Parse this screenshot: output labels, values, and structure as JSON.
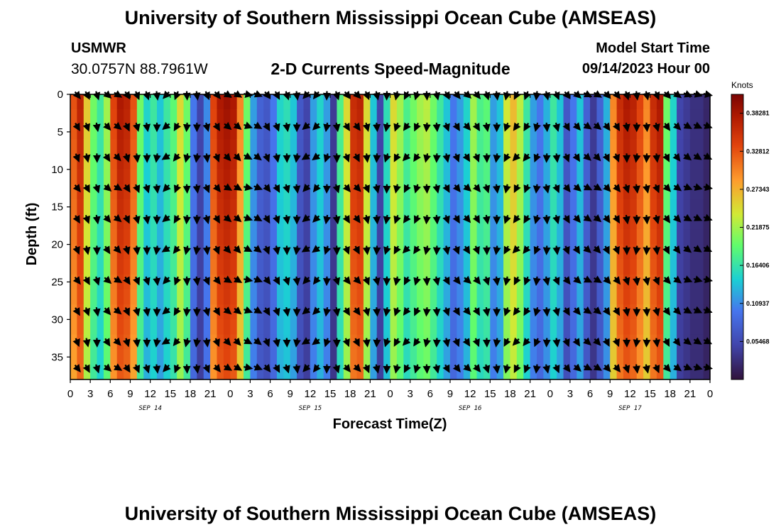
{
  "title_top": "University of Southern Mississippi Ocean Cube (AMSEAS)",
  "title_bottom": "University of Southern Mississippi Ocean Cube (AMSEAS)",
  "station": {
    "name": "USMWR",
    "coords": "30.0757N  88.7961W"
  },
  "plot_title": "2-D Currents Speed-Magnitude",
  "model_start": {
    "label": "Model Start Time",
    "value": "09/14/2023 Hour 00"
  },
  "chart_data": {
    "type": "heatmap",
    "title": "2-D Currents Speed-Magnitude",
    "xlabel": "Forecast Time(Z)",
    "ylabel": "Depth (ft)",
    "x_range_hours": [
      0,
      96
    ],
    "ylim": [
      38,
      0
    ],
    "x_tick_labels": [
      "0",
      "3",
      "6",
      "9",
      "12",
      "15",
      "18",
      "21",
      "0",
      "3",
      "6",
      "9",
      "12",
      "15",
      "18",
      "21",
      "0",
      "3",
      "6",
      "9",
      "12",
      "15",
      "18",
      "21",
      "0",
      "3",
      "6",
      "9",
      "12",
      "15",
      "18",
      "21",
      "0"
    ],
    "date_labels": [
      "SEP 14",
      "SEP 15",
      "SEP 16",
      "SEP 17"
    ],
    "y_ticks": [
      0,
      5,
      10,
      15,
      20,
      25,
      30,
      35
    ],
    "colorbar": {
      "unit": "Knots",
      "min": 0.0,
      "max": 0.41,
      "tick_labels": [
        "0.38281",
        "0.32812",
        "0.27343",
        "0.21875",
        "0.16406",
        "0.10937",
        "0.05468"
      ],
      "tick_values": [
        0.38281,
        0.32812,
        0.27343,
        0.21875,
        0.16406,
        0.10937,
        0.05468
      ]
    },
    "speed_profile_by_hour": [
      0.33,
      0.37,
      0.26,
      0.2,
      0.17,
      0.22,
      0.34,
      0.38,
      0.37,
      0.33,
      0.2,
      0.15,
      0.17,
      0.14,
      0.17,
      0.19,
      0.25,
      0.2,
      0.1,
      0.05,
      0.11,
      0.34,
      0.38,
      0.39,
      0.38,
      0.3,
      0.2,
      0.12,
      0.08,
      0.07,
      0.1,
      0.15,
      0.16,
      0.14,
      0.07,
      0.05,
      0.12,
      0.15,
      0.12,
      0.04,
      0.18,
      0.25,
      0.36,
      0.37,
      0.25,
      0.14,
      0.05,
      0.16,
      0.25,
      0.22,
      0.18,
      0.2,
      0.22,
      0.23,
      0.2,
      0.17,
      0.14,
      0.1,
      0.12,
      0.15,
      0.22,
      0.18,
      0.19,
      0.12,
      0.14,
      0.24,
      0.27,
      0.23,
      0.17,
      0.12,
      0.1,
      0.13,
      0.17,
      0.14,
      0.07,
      0.1,
      0.14,
      0.08,
      0.04,
      0.08,
      0.13,
      0.3,
      0.36,
      0.38,
      0.37,
      0.34,
      0.3,
      0.36,
      0.38,
      0.2,
      0.15,
      0.05,
      0.04,
      0.03,
      0.03,
      0.02,
      0.02
    ],
    "direction_by_hour_deg": [
      135,
      150,
      150,
      160,
      170,
      175,
      140,
      130,
      140,
      155,
      165,
      165,
      170,
      180,
      225,
      230,
      210,
      195,
      185,
      180,
      175,
      165,
      150,
      140,
      130,
      130,
      120,
      110,
      120,
      135,
      150,
      160,
      165,
      170,
      180,
      200,
      230,
      225,
      210,
      190,
      170,
      160,
      150,
      145,
      155,
      165,
      175,
      180,
      190,
      200,
      210,
      215,
      205,
      195,
      185,
      175,
      165,
      160,
      150,
      145,
      140,
      150,
      160,
      170,
      180,
      190,
      200,
      215,
      220,
      210,
      195,
      185,
      175,
      165,
      160,
      150,
      140,
      130,
      125,
      130,
      135,
      145,
      150,
      160,
      170,
      180,
      185,
      175,
      165,
      155,
      145,
      135,
      125,
      120,
      115,
      110,
      110
    ]
  }
}
